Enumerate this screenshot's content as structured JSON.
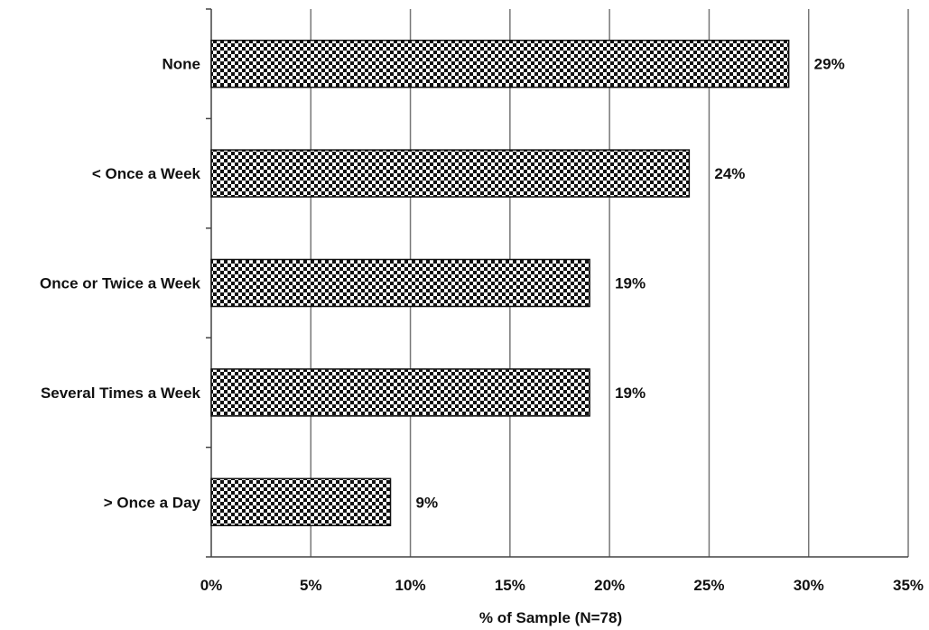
{
  "chart_data": {
    "type": "bar",
    "orientation": "horizontal",
    "categories": [
      "None",
      "< Once a Week",
      "Once or Twice a Week",
      "Several Times a Week",
      "> Once a Day"
    ],
    "values": [
      29,
      24,
      19,
      19,
      9
    ],
    "data_labels": [
      "29%",
      "24%",
      "19%",
      "19%",
      "9%"
    ],
    "xlabel": "% of Sample (N=78)",
    "ylabel": "",
    "title": "",
    "xlim": [
      0,
      35
    ],
    "x_ticks": [
      0,
      5,
      10,
      15,
      20,
      25,
      30,
      35
    ],
    "x_tick_labels": [
      "0%",
      "5%",
      "10%",
      "15%",
      "20%",
      "25%",
      "30%",
      "35%"
    ],
    "grid": "vertical",
    "legend": "none",
    "bar_fill": "checkerboard",
    "colors": {
      "bar_dark": "#111111",
      "bar_light": "#ffffff",
      "grid": "#777777"
    }
  }
}
